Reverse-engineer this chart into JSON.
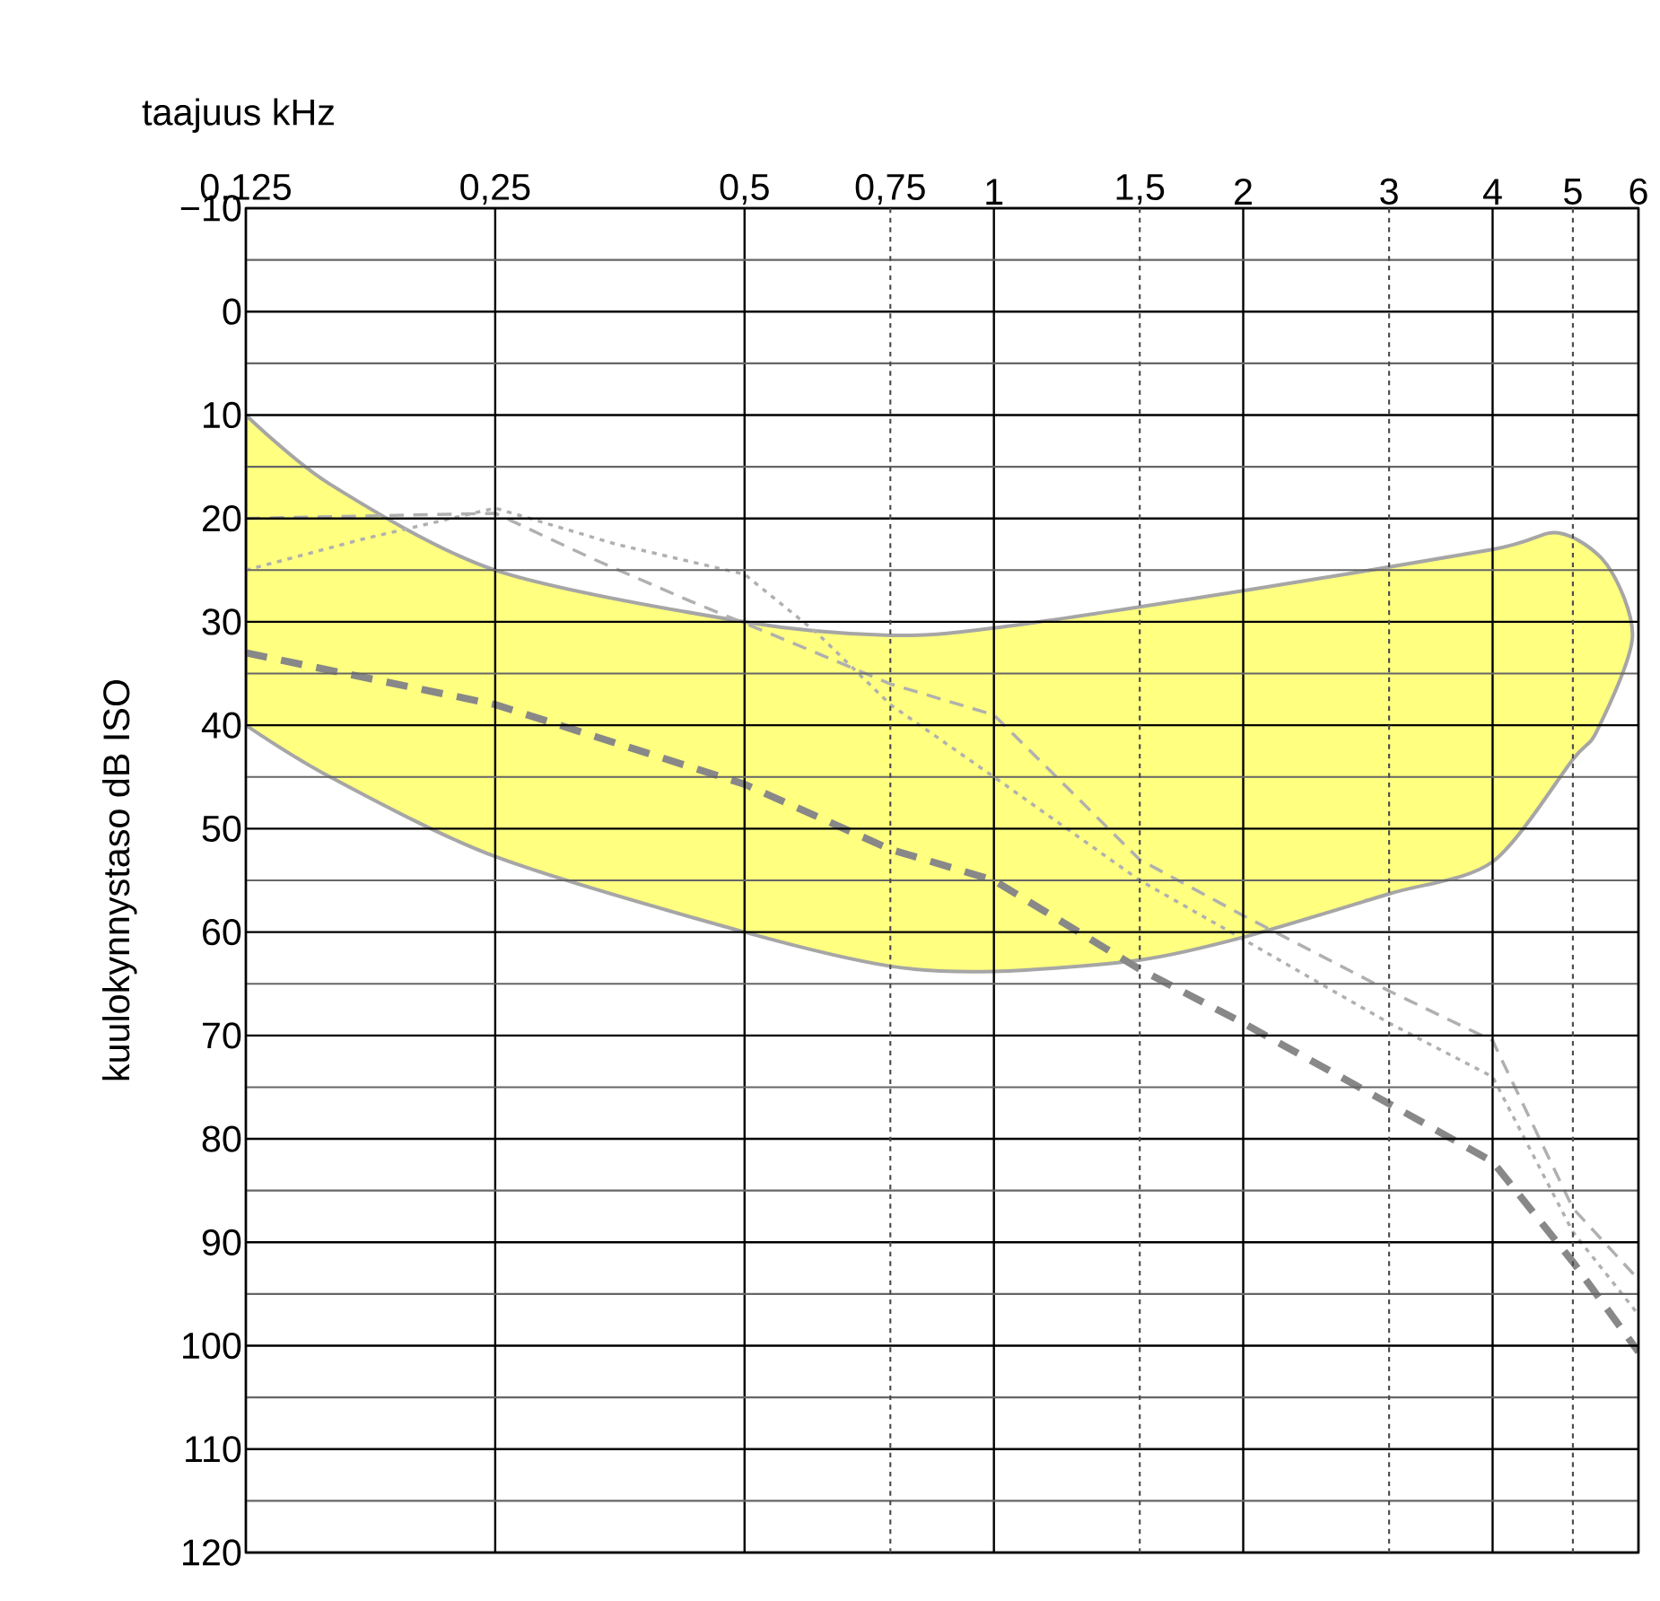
{
  "chart_data": {
    "type": "line",
    "xlabel": "taajuus kHz",
    "ylabel": "kuulokynnystaso dB ISO",
    "log": "x",
    "grid": true,
    "marker": "none",
    "xlim": [
      0.125,
      6
    ],
    "ylim": [
      120,
      -10
    ],
    "xticks": [
      {
        "value": 0.125,
        "label": "0,125"
      },
      {
        "value": 0.25,
        "label": "0,25"
      },
      {
        "value": 0.5,
        "label": "0,5"
      },
      {
        "value": 0.75,
        "label": "0,75"
      },
      1,
      {
        "value": 1.5,
        "label": "1,5"
      },
      2,
      3,
      4,
      5,
      6
    ],
    "yticks": [
      {
        "value": -10,
        "label": "−10"
      },
      0,
      10,
      20,
      30,
      40,
      50,
      60,
      70,
      80,
      90,
      100,
      110,
      120
    ],
    "series": [
      {
        "type": "area",
        "color": "#ffff80",
        "x": [
          0.125,
          0.158,
          0.25,
          0.5,
          0.75,
          1,
          2,
          4,
          4.8,
          5.5,
          5.9,
          5.35,
          5,
          4,
          3,
          2,
          1.5,
          1,
          0.75,
          0.5,
          0.25,
          0.158,
          0.125
        ],
        "values": [
          10,
          16.7,
          25,
          30,
          31.3,
          30.6,
          27,
          23,
          21.4,
          24.5,
          31.5,
          40.5,
          43.3,
          53.2,
          56.3,
          60.5,
          62.7,
          63.8,
          63.3,
          60,
          52.7,
          45,
          40
        ]
      },
      {
        "color": "#888888",
        "line_style": "dashed",
        "x": [
          0.125,
          0.25,
          0.5,
          0.75,
          1,
          1.5,
          2,
          3,
          4,
          5,
          6
        ],
        "values": [
          33,
          38,
          45.7,
          52,
          55,
          63.6,
          68.8,
          76.6,
          82.2,
          91.9,
          100.6
        ]
      },
      {
        "color": "#b0b0b0",
        "line_style": "dashed",
        "x": [
          0.125,
          0.25,
          0.33,
          0.43,
          0.57,
          0.75,
          1,
          1.5,
          2,
          3,
          4,
          5,
          6
        ],
        "values": [
          20,
          19.5,
          24,
          28,
          32,
          36,
          39,
          53,
          58.4,
          65.7,
          70.5,
          86.7,
          93.6
        ]
      },
      {
        "color": "#b0b0b0",
        "line_style": "dotted",
        "x": [
          0.125,
          0.173,
          0.25,
          0.35,
          0.5,
          0.61,
          0.75,
          1,
          1.5,
          2,
          3,
          4,
          5,
          6
        ],
        "values": [
          25,
          22,
          19,
          22.5,
          25.4,
          31,
          38,
          45,
          55,
          60.7,
          68.8,
          74,
          89,
          97
        ]
      }
    ]
  }
}
